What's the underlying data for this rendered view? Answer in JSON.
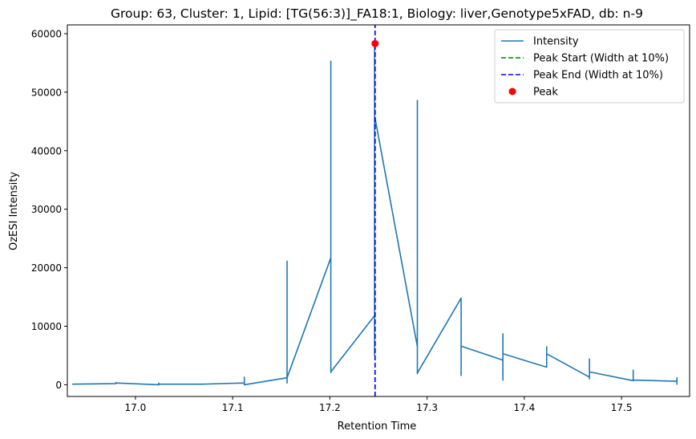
{
  "chart_data": {
    "type": "line",
    "title": "Group: 63, Cluster: 1, Lipid: [TG(56:3)]_FA18:1, Biology: liver,Genotype5xFAD, db: n-9",
    "xlabel": "Retention Time",
    "ylabel": "OzESI Intensity",
    "xlim": [
      16.93,
      17.57
    ],
    "ylim": [
      -2000,
      61500
    ],
    "xticks": [
      17.0,
      17.1,
      17.2,
      17.3,
      17.4,
      17.5
    ],
    "xtick_labels": [
      "17.0",
      "17.1",
      "17.2",
      "17.3",
      "17.4",
      "17.5"
    ],
    "yticks": [
      0,
      10000,
      20000,
      30000,
      40000,
      50000,
      60000
    ],
    "ytick_labels": [
      "0",
      "10000",
      "20000",
      "30000",
      "40000",
      "50000",
      "60000"
    ],
    "grid": false,
    "legend_position": "top-right",
    "series": [
      {
        "name": "Intensity",
        "color": "#1f77b4",
        "style": "solid",
        "x": [
          16.935,
          16.98,
          16.98,
          16.98,
          17.024,
          17.024,
          17.024,
          17.068,
          17.112,
          17.112,
          17.112,
          17.156,
          17.156,
          17.156,
          17.156,
          17.201,
          17.201,
          17.201,
          17.201,
          17.246,
          17.246,
          17.246,
          17.246,
          17.29,
          17.29,
          17.29,
          17.29,
          17.335,
          17.335,
          17.335,
          17.378,
          17.378,
          17.378,
          17.378,
          17.423,
          17.423,
          17.423,
          17.467,
          17.467,
          17.467,
          17.467,
          17.512,
          17.512,
          17.512,
          17.557,
          17.557,
          17.557
        ],
        "y": [
          100,
          200,
          400,
          300,
          0,
          300,
          100,
          100,
          300,
          1300,
          0,
          1200,
          21100,
          300,
          1200,
          21700,
          55300,
          2100,
          2200,
          11800,
          58300,
          5000,
          46000,
          6500,
          48600,
          1900,
          2000,
          14800,
          1600,
          6600,
          4200,
          8700,
          800,
          5300,
          3000,
          6500,
          5300,
          1300,
          4400,
          1000,
          2200,
          700,
          2500,
          800,
          600,
          1200,
          0
        ]
      },
      {
        "name": "Peak Start (Width at 10%)",
        "color": "#008000",
        "style": "dashed",
        "x": [
          17.2465,
          17.2465
        ],
        "y": [
          -2000,
          61500
        ]
      },
      {
        "name": "Peak End (Width at 10%)",
        "color": "#0000ff",
        "style": "dashed",
        "x": [
          17.2465,
          17.2465
        ],
        "y": [
          -2000,
          61500
        ]
      },
      {
        "name": "Peak",
        "color": "#ff0000",
        "style": "marker",
        "x": [
          17.2465
        ],
        "y": [
          58300
        ]
      }
    ]
  }
}
